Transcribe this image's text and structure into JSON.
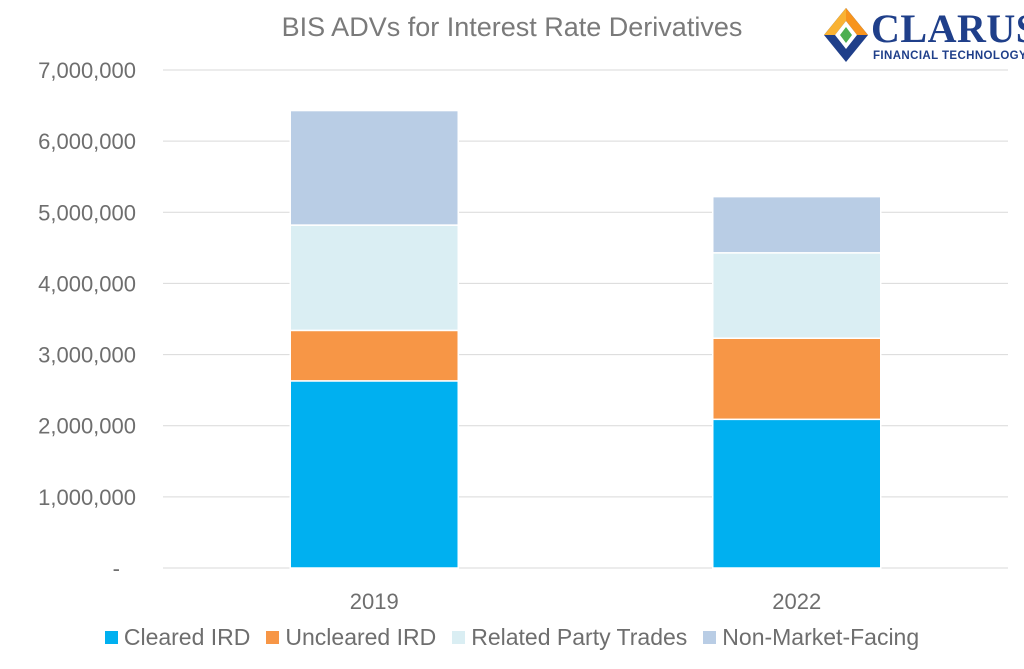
{
  "chart_data": {
    "type": "bar",
    "stacked": true,
    "title": "BIS ADVs for Interest Rate Derivatives",
    "categories": [
      "2019",
      "2022"
    ],
    "series": [
      {
        "name": "Cleared IRD",
        "color": "#00b0f0",
        "values": [
          2630000,
          2090000
        ]
      },
      {
        "name": "Uncleared IRD",
        "color": "#f79646",
        "values": [
          710000,
          1140000
        ]
      },
      {
        "name": "Related Party Trades",
        "color": "#daeef3",
        "values": [
          1480000,
          1200000
        ]
      },
      {
        "name": "Non-Market-Facing",
        "color": "#b9cde5",
        "values": [
          1610000,
          790000
        ]
      }
    ],
    "ylim": [
      0,
      7000000
    ],
    "yticks": [
      0,
      1000000,
      2000000,
      3000000,
      4000000,
      5000000,
      6000000,
      7000000
    ],
    "ytick_labels": [
      "-",
      "1,000,000",
      "2,000,000",
      "3,000,000",
      "4,000,000",
      "5,000,000",
      "6,000,000",
      "7,000,000"
    ],
    "grid": true,
    "legend_position": "bottom",
    "xlabel": "",
    "ylabel": ""
  },
  "logo": {
    "word": "CLARUS",
    "subtitle": "FINANCIAL TECHNOLOGY"
  }
}
